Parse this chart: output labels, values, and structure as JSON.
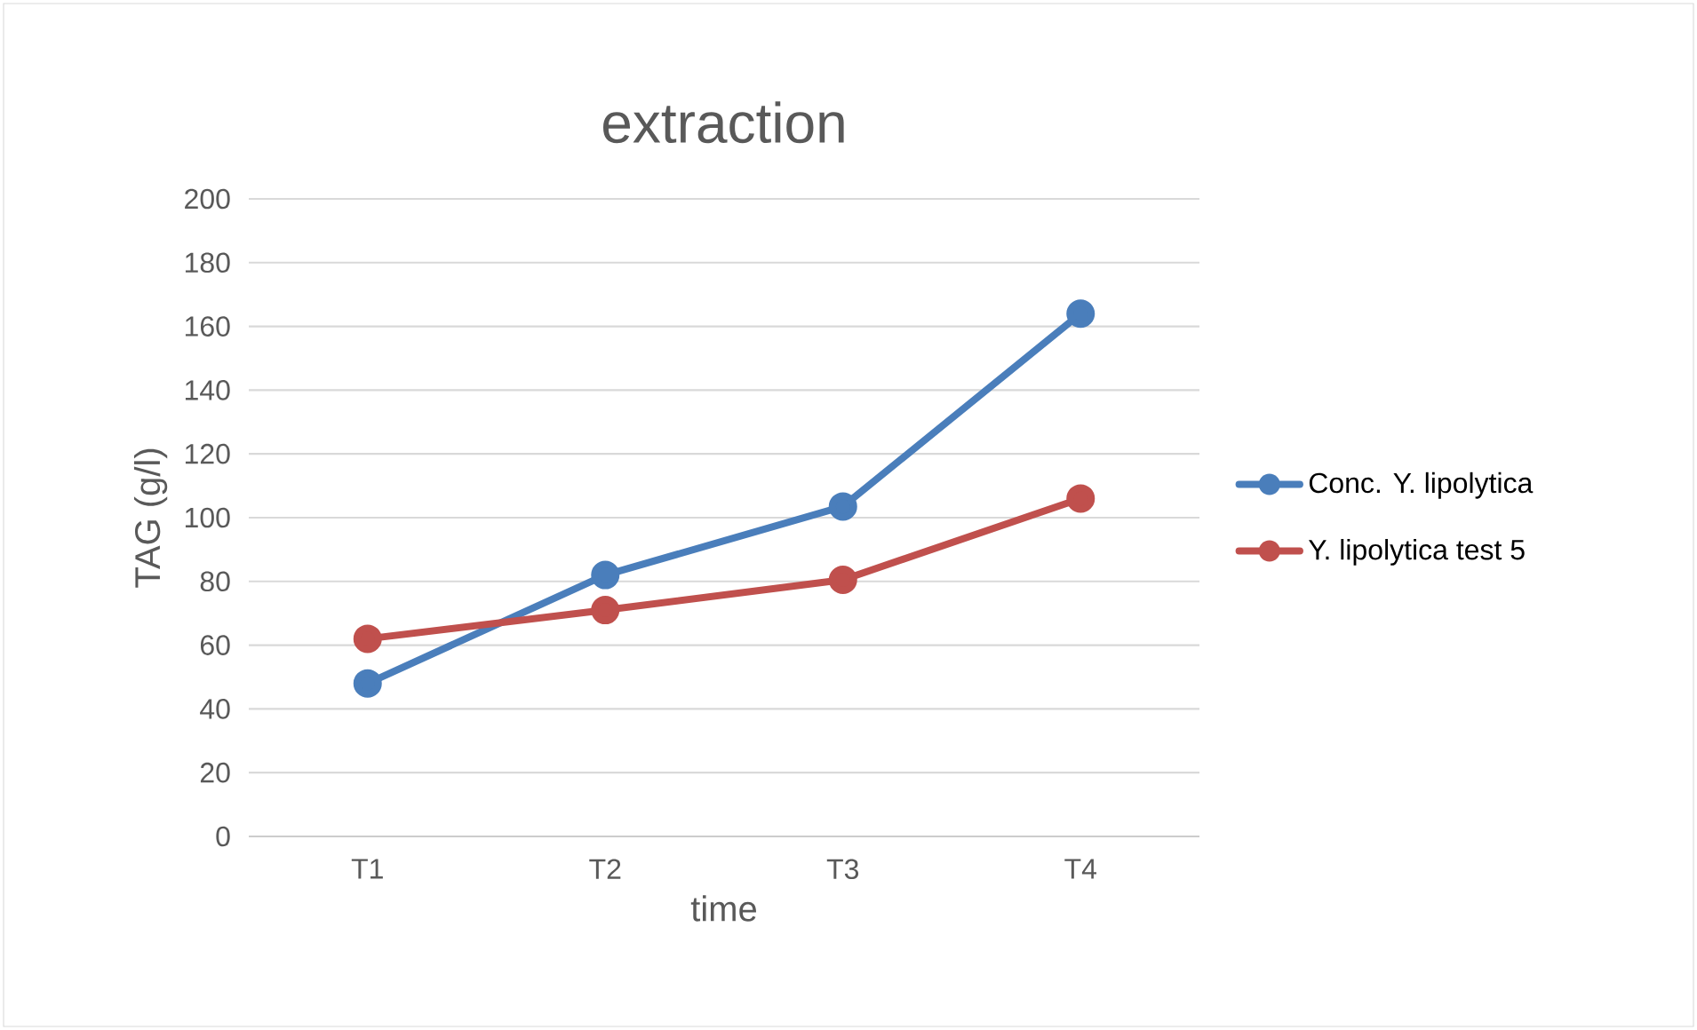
{
  "chart_data": {
    "type": "line",
    "title": "extraction",
    "xlabel": "time",
    "ylabel": "TAG (g/l)",
    "categories": [
      "T1",
      "T2",
      "T3",
      "T4"
    ],
    "series": [
      {
        "name": "Conc. Y. lipolytica",
        "color": "#4a7ebb",
        "values": [
          48,
          82,
          103.5,
          164
        ]
      },
      {
        "name": "Y. lipolytica test 5",
        "color": "#c0504d",
        "values": [
          62,
          71,
          80.5,
          106
        ]
      }
    ],
    "ylim": [
      0,
      200
    ],
    "yticks": [
      0,
      20,
      40,
      60,
      80,
      100,
      120,
      140,
      160,
      180,
      200
    ],
    "grid": "y",
    "legend": "right",
    "marker": "circle",
    "line_style": "solid"
  }
}
